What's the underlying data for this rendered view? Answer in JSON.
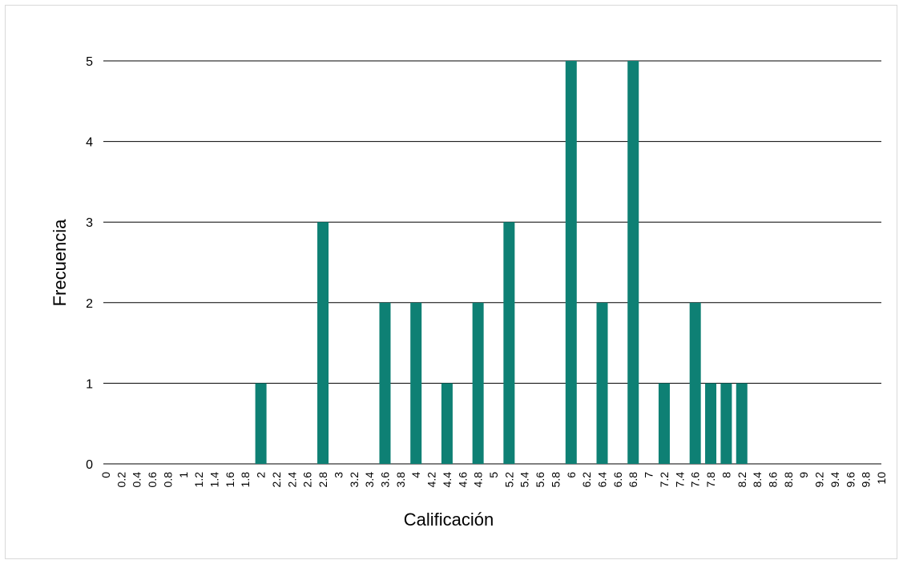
{
  "chart_data": {
    "type": "bar",
    "title": "",
    "xlabel": "Calificación",
    "ylabel": "Frecuencia",
    "ylim": [
      0,
      5
    ],
    "yticks": [
      "0",
      "1",
      "2",
      "3",
      "4",
      "5"
    ],
    "grid": "horizontal",
    "legend": "none",
    "bar_color": "#0e8074",
    "categories": [
      "0",
      "0.2",
      "0.4",
      "0.6",
      "0.8",
      "1",
      "1.2",
      "1.4",
      "1.6",
      "1.8",
      "2",
      "2.2",
      "2.4",
      "2.6",
      "2.8",
      "3",
      "3.2",
      "3.4",
      "3.6",
      "3.8",
      "4",
      "4.2",
      "4.4",
      "4.6",
      "4.8",
      "5",
      "5.2",
      "5.4",
      "5.6",
      "5.8",
      "6",
      "6.2",
      "6.4",
      "6.6",
      "6.8",
      "7",
      "7.2",
      "7.4",
      "7.6",
      "7.8",
      "8",
      "8.2",
      "8.4",
      "8.6",
      "8.8",
      "9",
      "9.2",
      "9.4",
      "9.6",
      "9.8",
      "10"
    ],
    "values": [
      0,
      0,
      0,
      0,
      0,
      0,
      0,
      0,
      0,
      0,
      1,
      0,
      0,
      0,
      3,
      0,
      0,
      0,
      2,
      0,
      2,
      0,
      1,
      0,
      2,
      0,
      3,
      0,
      0,
      0,
      5,
      0,
      2,
      0,
      5,
      0,
      1,
      0,
      2,
      1,
      1,
      1,
      0,
      0,
      0,
      0,
      0,
      0,
      0,
      0,
      0
    ]
  }
}
